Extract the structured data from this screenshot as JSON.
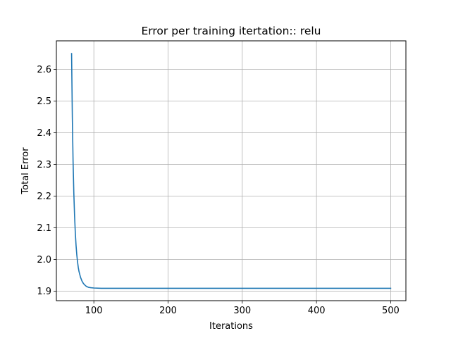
{
  "chart_data": {
    "type": "line",
    "title": "Error per training itertation:: relu",
    "xlabel": "Iterations",
    "ylabel": "Total Error",
    "xlim": [
      49.5,
      520.5
    ],
    "ylim": [
      1.87,
      2.69
    ],
    "xticks": [
      100,
      200,
      300,
      400,
      500
    ],
    "yticks": [
      1.9,
      2.0,
      2.1,
      2.2,
      2.3,
      2.4,
      2.5,
      2.6
    ],
    "grid": true,
    "legend": "none",
    "colors": {
      "line": "#1f77b4",
      "grid": "#b0b0b0",
      "axes": "#000000"
    },
    "series": [
      {
        "x": [
          70,
          71,
          72,
          73,
          74,
          75,
          76,
          77,
          78,
          79,
          80,
          82,
          84,
          86,
          88,
          90,
          93,
          96,
          100,
          110,
          130,
          160,
          200,
          250,
          300,
          350,
          400,
          450,
          500
        ],
        "values": [
          2.65,
          2.45,
          2.31,
          2.21,
          2.14,
          2.085,
          2.045,
          2.015,
          1.993,
          1.975,
          1.962,
          1.944,
          1.932,
          1.924,
          1.919,
          1.915,
          1.912,
          1.911,
          1.91,
          1.909,
          1.909,
          1.909,
          1.909,
          1.909,
          1.909,
          1.909,
          1.909,
          1.909,
          1.909
        ]
      }
    ]
  }
}
